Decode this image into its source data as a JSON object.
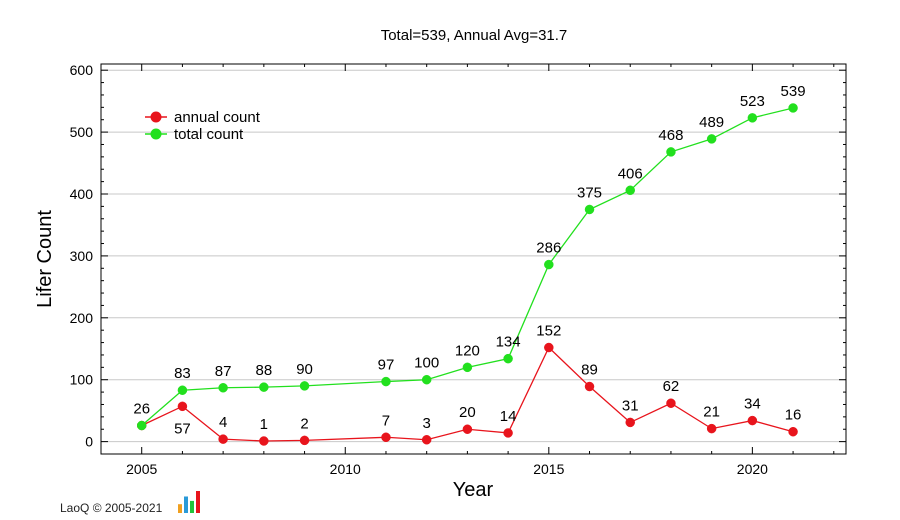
{
  "chart_data": {
    "type": "line",
    "title": "Total=539, Annual Avg=31.7",
    "xlabel": "Year",
    "ylabel": "Lifer Count",
    "xlim": [
      2004,
      2022.3
    ],
    "ylim": [
      -20,
      610
    ],
    "xticks": [
      2005,
      2010,
      2015,
      2020
    ],
    "yticks": [
      0,
      100,
      200,
      300,
      400,
      500,
      600
    ],
    "grid": true,
    "legend_position": "top-left",
    "series": [
      {
        "name": "annual count",
        "color": "#e8141c",
        "points": [
          {
            "x": 2005,
            "y": 26,
            "label": "26"
          },
          {
            "x": 2006,
            "y": 57,
            "label": "57"
          },
          {
            "x": 2007,
            "y": 4,
            "label": "4"
          },
          {
            "x": 2008,
            "y": 1,
            "label": "1"
          },
          {
            "x": 2009,
            "y": 2,
            "label": "2"
          },
          {
            "x": 2011,
            "y": 7,
            "label": "7"
          },
          {
            "x": 2012,
            "y": 3,
            "label": "3"
          },
          {
            "x": 2013,
            "y": 20,
            "label": "20"
          },
          {
            "x": 2014,
            "y": 14,
            "label": "14"
          },
          {
            "x": 2015,
            "y": 152,
            "label": "152"
          },
          {
            "x": 2016,
            "y": 89,
            "label": "89"
          },
          {
            "x": 2017,
            "y": 31,
            "label": "31"
          },
          {
            "x": 2018,
            "y": 62,
            "label": "62"
          },
          {
            "x": 2019,
            "y": 21,
            "label": "21"
          },
          {
            "x": 2020,
            "y": 34,
            "label": "34"
          },
          {
            "x": 2021,
            "y": 16,
            "label": "16"
          }
        ]
      },
      {
        "name": "total count",
        "color": "#22e01e",
        "points": [
          {
            "x": 2005,
            "y": 26
          },
          {
            "x": 2006,
            "y": 83,
            "label": "83"
          },
          {
            "x": 2007,
            "y": 87,
            "label": "87"
          },
          {
            "x": 2008,
            "y": 88,
            "label": "88"
          },
          {
            "x": 2009,
            "y": 90,
            "label": "90"
          },
          {
            "x": 2011,
            "y": 97,
            "label": "97"
          },
          {
            "x": 2012,
            "y": 100,
            "label": "100"
          },
          {
            "x": 2013,
            "y": 120,
            "label": "120"
          },
          {
            "x": 2014,
            "y": 134,
            "label": "134"
          },
          {
            "x": 2015,
            "y": 286,
            "label": "286"
          },
          {
            "x": 2016,
            "y": 375,
            "label": "375"
          },
          {
            "x": 2017,
            "y": 406,
            "label": "406"
          },
          {
            "x": 2018,
            "y": 468,
            "label": "468"
          },
          {
            "x": 2019,
            "y": 489,
            "label": "489"
          },
          {
            "x": 2020,
            "y": 523,
            "label": "523"
          },
          {
            "x": 2021,
            "y": 539,
            "label": "539"
          }
        ]
      }
    ],
    "footer": {
      "text": "LaoQ © 2005-2021",
      "logo_bar_colors": [
        "#f0a020",
        "#2a9ad8",
        "#21c43a",
        "#e8141c"
      ],
      "logo_bar_levels": [
        0.4,
        0.75,
        0.55,
        1.0
      ]
    }
  }
}
